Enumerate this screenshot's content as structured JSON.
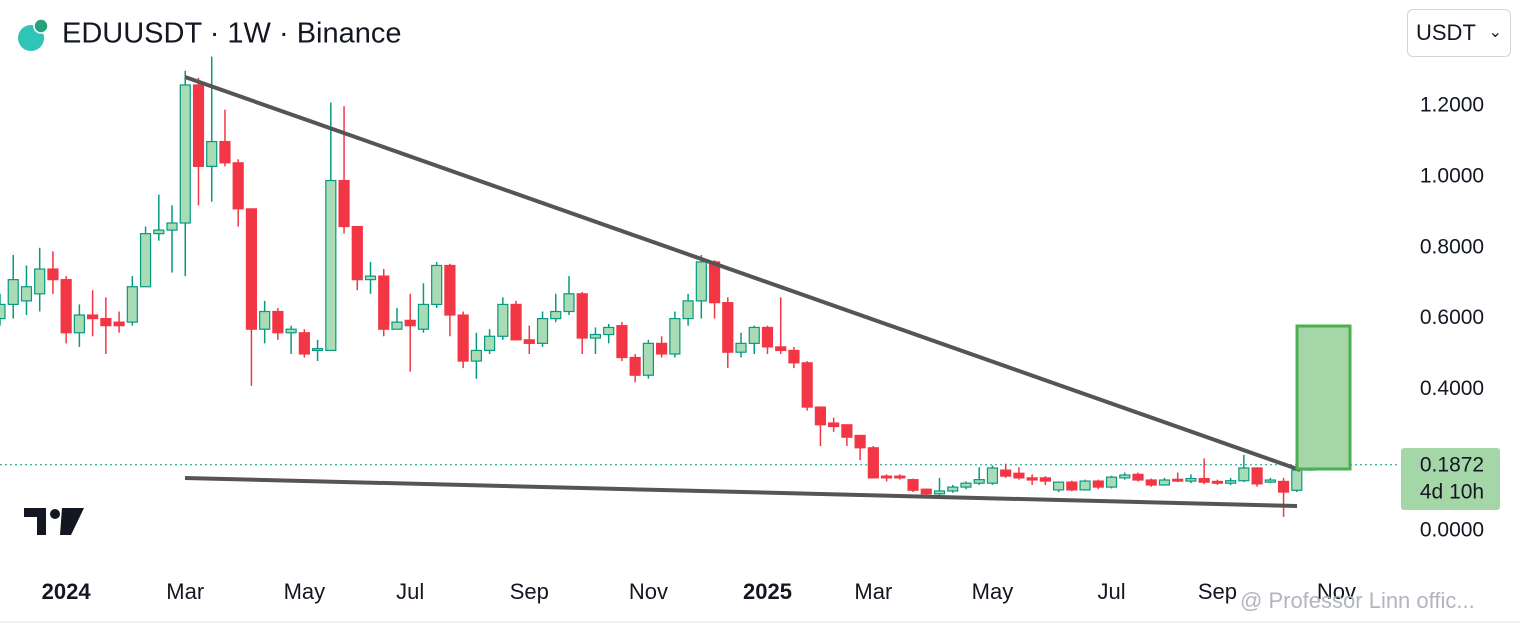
{
  "chart_data": {
    "type": "candlestick",
    "title": "EDUUSDT · 1W · Binance",
    "currency": "USDT",
    "up_color": "#089981",
    "up_fill": "#a7dcb5",
    "down_color": "#f23645",
    "x": [
      0,
      1,
      2,
      3,
      4,
      5,
      6,
      7,
      8,
      9,
      10,
      11,
      12,
      13,
      14,
      15,
      16,
      17,
      18,
      19,
      20,
      21,
      22,
      23,
      24,
      25,
      26,
      27,
      28,
      29,
      30,
      31,
      32,
      33,
      34,
      35,
      36,
      37,
      38,
      39,
      40,
      41,
      42,
      43,
      44,
      45,
      46,
      47,
      48,
      49,
      50,
      51,
      52,
      53,
      54,
      55,
      56,
      57,
      58,
      59,
      60,
      61,
      62,
      63,
      64,
      65,
      66,
      67,
      68,
      69,
      70,
      71,
      72,
      73,
      74,
      75,
      76,
      77,
      78,
      79,
      80,
      81,
      82,
      83,
      84,
      85,
      86,
      87,
      88,
      89,
      90,
      91,
      92,
      93,
      94,
      95,
      96,
      97,
      98,
      99
    ],
    "open": [
      0.6,
      0.64,
      0.65,
      0.67,
      0.74,
      0.71,
      0.56,
      0.61,
      0.6,
      0.59,
      0.59,
      0.69,
      0.84,
      0.85,
      0.87,
      1.26,
      1.03,
      1.1,
      1.04,
      0.91,
      0.57,
      0.62,
      0.56,
      0.56,
      0.51,
      0.51,
      0.99,
      0.86,
      0.71,
      0.72,
      0.57,
      0.595,
      0.57,
      0.64,
      0.75,
      0.61,
      0.48,
      0.51,
      0.55,
      0.64,
      0.54,
      0.53,
      0.6,
      0.62,
      0.67,
      0.545,
      0.555,
      0.58,
      0.49,
      0.44,
      0.53,
      0.5,
      0.6,
      0.65,
      0.76,
      0.645,
      0.505,
      0.53,
      0.575,
      0.52,
      0.51,
      0.475,
      0.35,
      0.305,
      0.3,
      0.27,
      0.235,
      0.155,
      0.155,
      0.145,
      0.118,
      0.105,
      0.113,
      0.124,
      0.135,
      0.135,
      0.172,
      0.163,
      0.15,
      0.15,
      0.116,
      0.138,
      0.116,
      0.141,
      0.124,
      0.15,
      0.16,
      0.144,
      0.13,
      0.146,
      0.141,
      0.148,
      0.14,
      0.135,
      0.142,
      0.178,
      0.138,
      0.14,
      0.115,
      0.172
    ],
    "close": [
      0.64,
      0.71,
      0.69,
      0.74,
      0.71,
      0.56,
      0.61,
      0.6,
      0.58,
      0.58,
      0.69,
      0.84,
      0.85,
      0.87,
      1.26,
      1.03,
      1.1,
      1.04,
      0.91,
      0.57,
      0.62,
      0.56,
      0.57,
      0.5,
      0.515,
      0.99,
      0.86,
      0.71,
      0.72,
      0.57,
      0.59,
      0.58,
      0.64,
      0.75,
      0.61,
      0.48,
      0.51,
      0.55,
      0.64,
      0.54,
      0.53,
      0.6,
      0.62,
      0.67,
      0.545,
      0.555,
      0.575,
      0.49,
      0.44,
      0.53,
      0.5,
      0.6,
      0.65,
      0.76,
      0.645,
      0.505,
      0.53,
      0.575,
      0.52,
      0.51,
      0.475,
      0.35,
      0.3,
      0.295,
      0.265,
      0.235,
      0.15,
      0.15,
      0.15,
      0.115,
      0.105,
      0.113,
      0.124,
      0.135,
      0.145,
      0.178,
      0.155,
      0.15,
      0.144,
      0.141,
      0.138,
      0.116,
      0.141,
      0.124,
      0.152,
      0.158,
      0.144,
      0.13,
      0.144,
      0.141,
      0.148,
      0.138,
      0.135,
      0.142,
      0.178,
      0.133,
      0.144,
      0.11,
      0.172,
      0.1872
    ],
    "high": [
      0.67,
      0.78,
      0.75,
      0.8,
      0.79,
      0.72,
      0.64,
      0.68,
      0.66,
      0.62,
      0.72,
      0.86,
      0.95,
      0.92,
      1.3,
      1.28,
      1.34,
      1.19,
      1.05,
      0.91,
      0.65,
      0.63,
      0.58,
      0.57,
      0.54,
      1.21,
      1.2,
      0.86,
      0.76,
      0.74,
      0.63,
      0.67,
      0.7,
      0.76,
      0.755,
      0.62,
      0.56,
      0.57,
      0.66,
      0.65,
      0.58,
      0.62,
      0.67,
      0.72,
      0.675,
      0.575,
      0.585,
      0.59,
      0.5,
      0.54,
      0.55,
      0.62,
      0.67,
      0.78,
      0.765,
      0.66,
      0.56,
      0.58,
      0.58,
      0.66,
      0.52,
      0.48,
      0.35,
      0.32,
      0.3,
      0.27,
      0.24,
      0.16,
      0.16,
      0.148,
      0.12,
      0.15,
      0.13,
      0.14,
      0.18,
      0.185,
      0.19,
      0.18,
      0.16,
      0.155,
      0.14,
      0.142,
      0.145,
      0.145,
      0.156,
      0.165,
      0.165,
      0.148,
      0.15,
      0.165,
      0.16,
      0.205,
      0.145,
      0.15,
      0.215,
      0.18,
      0.15,
      0.15,
      0.18,
      0.21
    ],
    "low": [
      0.58,
      0.6,
      0.61,
      0.62,
      0.67,
      0.53,
      0.52,
      0.55,
      0.5,
      0.56,
      0.58,
      0.69,
      0.82,
      0.73,
      0.72,
      0.92,
      0.93,
      1.03,
      0.86,
      0.41,
      0.53,
      0.54,
      0.5,
      0.49,
      0.48,
      0.51,
      0.84,
      0.68,
      0.67,
      0.55,
      0.57,
      0.45,
      0.56,
      0.63,
      0.55,
      0.46,
      0.43,
      0.5,
      0.54,
      0.54,
      0.5,
      0.52,
      0.59,
      0.61,
      0.5,
      0.5,
      0.53,
      0.48,
      0.42,
      0.43,
      0.49,
      0.49,
      0.58,
      0.6,
      0.6,
      0.46,
      0.49,
      0.5,
      0.5,
      0.5,
      0.46,
      0.34,
      0.24,
      0.28,
      0.24,
      0.2,
      0.15,
      0.14,
      0.145,
      0.11,
      0.1,
      0.1,
      0.108,
      0.118,
      0.13,
      0.13,
      0.15,
      0.145,
      0.13,
      0.13,
      0.11,
      0.112,
      0.114,
      0.118,
      0.12,
      0.145,
      0.14,
      0.125,
      0.128,
      0.138,
      0.135,
      0.132,
      0.13,
      0.13,
      0.138,
      0.125,
      0.135,
      0.04,
      0.11,
      0.17
    ],
    "xlim": [
      0,
      105.8
    ],
    "xticks": [
      {
        "value": 5,
        "label": "2024"
      },
      {
        "value": 14,
        "label": "Mar"
      },
      {
        "value": 23,
        "label": "May"
      },
      {
        "value": 31,
        "label": "Jul"
      },
      {
        "value": 40,
        "label": "Sep"
      },
      {
        "value": 49,
        "label": "Nov"
      },
      {
        "value": 58,
        "label": "2025"
      },
      {
        "value": 66,
        "label": "Mar"
      },
      {
        "value": 75,
        "label": "May"
      },
      {
        "value": 84,
        "label": "Jul"
      },
      {
        "value": 92,
        "label": "Sep"
      },
      {
        "value": 101,
        "label": "Nov"
      }
    ],
    "ylim": [
      -0.082,
      1.5
    ],
    "yticks": [
      {
        "value": 0,
        "label": "0.0000"
      },
      {
        "value": 0.4,
        "label": "0.4000"
      },
      {
        "value": 0.6,
        "label": "0.6000"
      },
      {
        "value": 0.8,
        "label": "0.8000"
      },
      {
        "value": 1,
        "label": "1.0000"
      },
      {
        "value": 1.2,
        "label": "1.2000"
      }
    ],
    "last_price": 0.1872,
    "countdown": "4d 10h",
    "watermark": "@ Professor Linn offic..."
  }
}
